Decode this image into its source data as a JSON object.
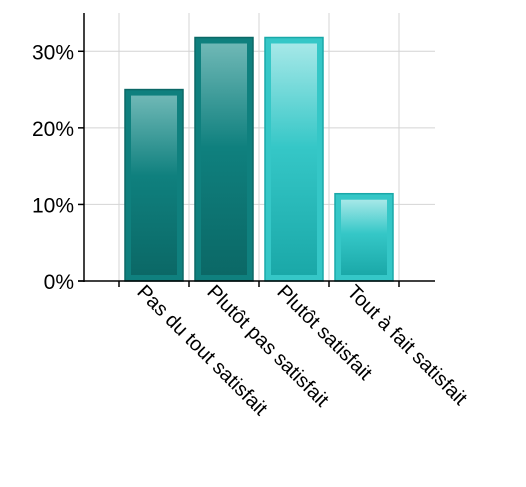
{
  "chart_data": {
    "type": "bar",
    "title": "",
    "xlabel": "",
    "ylabel": "",
    "categories": [
      "Pas du tout satisfait",
      "Plutôt pas satisfait",
      "Plutôt satisfait",
      "Tout à fait satisfait"
    ],
    "values": [
      25,
      31.8,
      31.8,
      11.4
    ],
    "value_unit": "%",
    "ylim": [
      0,
      35
    ],
    "yticks": [
      0,
      10,
      20,
      30
    ],
    "ytick_labels": [
      "0%",
      "10%",
      "20%",
      "30%"
    ],
    "grid": true,
    "legend": "none",
    "colors": {
      "dark_teal_fill": "#0f807e",
      "dark_teal_highlight": "#6fb8b6",
      "dark_teal_border": "#0b6866",
      "light_teal_fill": "#35c7c7",
      "light_teal_highlight": "#a6e8e8",
      "light_teal_border": "#1aa8a8",
      "grid": "#d4d4d4",
      "axis": "#000000"
    },
    "bar_color_keys": [
      "dark",
      "dark",
      "light",
      "light"
    ]
  }
}
